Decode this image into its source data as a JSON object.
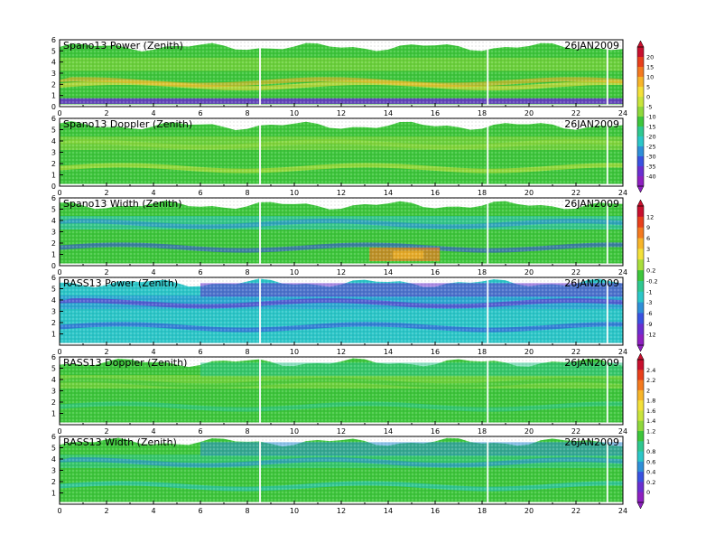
{
  "chart_data": [
    {
      "type": "heatmap",
      "title": "Spano13 Power (Zenith)",
      "date": "26JAN2009",
      "xlim": [
        0,
        24
      ],
      "ylim": [
        0,
        6
      ],
      "x_ticks": [
        0,
        2,
        4,
        6,
        8,
        10,
        12,
        14,
        16,
        18,
        20,
        22,
        24
      ],
      "y_ticks": [
        0,
        1,
        2,
        3,
        4,
        5,
        6
      ],
      "colorbar_group": 0
    },
    {
      "type": "heatmap",
      "title": "Spano13 Doppler (Zenith)",
      "date": "26JAN2009",
      "xlim": [
        0,
        24
      ],
      "ylim": [
        0,
        6
      ],
      "x_ticks": [
        0,
        2,
        4,
        6,
        8,
        10,
        12,
        14,
        16,
        18,
        20,
        22,
        24
      ],
      "y_ticks": [
        0,
        1,
        2,
        3,
        4,
        5,
        6
      ],
      "colorbar_group": 0
    },
    {
      "type": "heatmap",
      "title": "Spano13 Width (Zenith)",
      "date": "26JAN2009",
      "xlim": [
        0,
        24
      ],
      "ylim": [
        0,
        6
      ],
      "x_ticks": [
        0,
        2,
        4,
        6,
        8,
        10,
        12,
        14,
        16,
        18,
        20,
        22,
        24
      ],
      "y_ticks": [
        0,
        1,
        2,
        3,
        4,
        5,
        6
      ],
      "colorbar_group": 1
    },
    {
      "type": "heatmap",
      "title": "RASS13 Power (Zenith)",
      "date": "26JAN2009",
      "xlim": [
        0,
        24
      ],
      "ylim": [
        0,
        6
      ],
      "x_ticks": [
        0,
        2,
        4,
        6,
        8,
        10,
        12,
        14,
        16,
        18,
        20,
        22,
        24
      ],
      "y_ticks": [
        1,
        2,
        3,
        4,
        5,
        6
      ],
      "colorbar_group": 1
    },
    {
      "type": "heatmap",
      "title": "RASS13 Doppler (Zenith)",
      "date": "26JAN2009",
      "xlim": [
        0,
        24
      ],
      "ylim": [
        0,
        6
      ],
      "x_ticks": [
        0,
        2,
        4,
        6,
        8,
        10,
        12,
        14,
        16,
        18,
        20,
        22,
        24
      ],
      "y_ticks": [
        1,
        2,
        3,
        4,
        5,
        6
      ],
      "colorbar_group": 2
    },
    {
      "type": "heatmap",
      "title": "RASS13 Width (Zenith)",
      "date": "26JAN2009",
      "xlim": [
        0,
        24
      ],
      "ylim": [
        0,
        6
      ],
      "x_ticks": [
        0,
        2,
        4,
        6,
        8,
        10,
        12,
        14,
        16,
        18,
        20,
        22,
        24
      ],
      "y_ticks": [
        1,
        2,
        3,
        4,
        5,
        6
      ],
      "colorbar_group": 2
    }
  ],
  "colorbars": [
    {
      "labels": [
        "20",
        "15",
        "10",
        "5",
        "0",
        "-5",
        "-10",
        "-15",
        "-20",
        "-25",
        "-30",
        "-35",
        "-40"
      ],
      "colors": [
        "#c8102e",
        "#e8401c",
        "#f47a20",
        "#f7b52a",
        "#f3e03a",
        "#c9e43c",
        "#8fd83c",
        "#3ec63c",
        "#2fc890",
        "#2cc6c8",
        "#2f8fd8",
        "#3a52e0",
        "#6a2fd0",
        "#8e20c0"
      ]
    },
    {
      "labels": [
        "12",
        "9",
        "6",
        "3",
        "1",
        "0.2",
        "-0.2",
        "-1",
        "-3",
        "-6",
        "-9",
        "-12"
      ],
      "colors": [
        "#c8102e",
        "#e8401c",
        "#f47a20",
        "#f7b52a",
        "#f3e03a",
        "#a8de3c",
        "#3ec63c",
        "#2fc890",
        "#2cc6c8",
        "#2f8fd8",
        "#3a52e0",
        "#6a2fd0",
        "#8e20c0"
      ]
    },
    {
      "labels": [
        "2.4",
        "2.2",
        "2",
        "1.8",
        "1.6",
        "1.4",
        "1.2",
        "1",
        "0.8",
        "0.6",
        "0.4",
        "0.2",
        "0"
      ],
      "colors": [
        "#c8102e",
        "#e8401c",
        "#f47a20",
        "#f7b52a",
        "#f3e03a",
        "#c9e43c",
        "#8fd83c",
        "#3ec63c",
        "#2fc890",
        "#2cc6c8",
        "#2f8fd8",
        "#3a52e0",
        "#6a2fd0",
        "#8e20c0"
      ]
    }
  ]
}
